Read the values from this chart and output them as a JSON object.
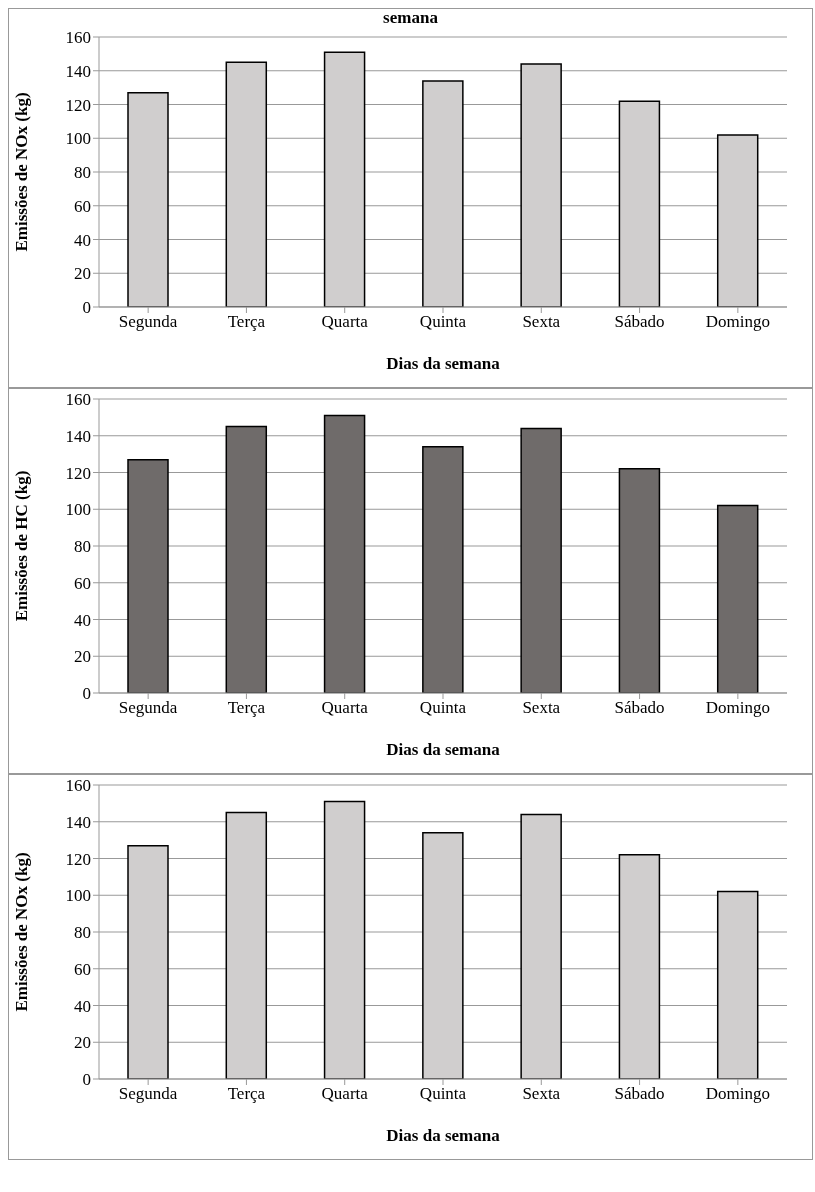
{
  "chart_data": [
    {
      "type": "bar",
      "title": "semana",
      "xlabel": "Dias da semana",
      "ylabel": "Emissões de NOx (kg)",
      "categories": [
        "Segunda",
        "Terça",
        "Quarta",
        "Quinta",
        "Sexta",
        "Sábado",
        "Domingo"
      ],
      "values": [
        127,
        145,
        151,
        134,
        144,
        122,
        102
      ],
      "color": "#d0cece",
      "ylim": [
        0,
        160
      ],
      "yticks": [
        0,
        20,
        40,
        60,
        80,
        100,
        120,
        140,
        160
      ],
      "grid": "y"
    },
    {
      "type": "bar",
      "xlabel": "Dias da semana",
      "ylabel": "Emissões de HC (kg)",
      "categories": [
        "Segunda",
        "Terça",
        "Quarta",
        "Quinta",
        "Sexta",
        "Sábado",
        "Domingo"
      ],
      "values": [
        127,
        145,
        151,
        134,
        144,
        122,
        102
      ],
      "color": "#6f6b6a",
      "ylim": [
        0,
        160
      ],
      "yticks": [
        0,
        20,
        40,
        60,
        80,
        100,
        120,
        140,
        160
      ],
      "grid": "y"
    },
    {
      "type": "bar",
      "xlabel": "Dias da semana",
      "ylabel": "Emissões de NOx (kg)",
      "categories": [
        "Segunda",
        "Terça",
        "Quarta",
        "Quinta",
        "Sexta",
        "Sábado",
        "Domingo"
      ],
      "values": [
        127,
        145,
        151,
        134,
        144,
        122,
        102
      ],
      "color": "#d0cece",
      "ylim": [
        0,
        160
      ],
      "yticks": [
        0,
        20,
        40,
        60,
        80,
        100,
        120,
        140,
        160
      ],
      "grid": "y"
    }
  ]
}
